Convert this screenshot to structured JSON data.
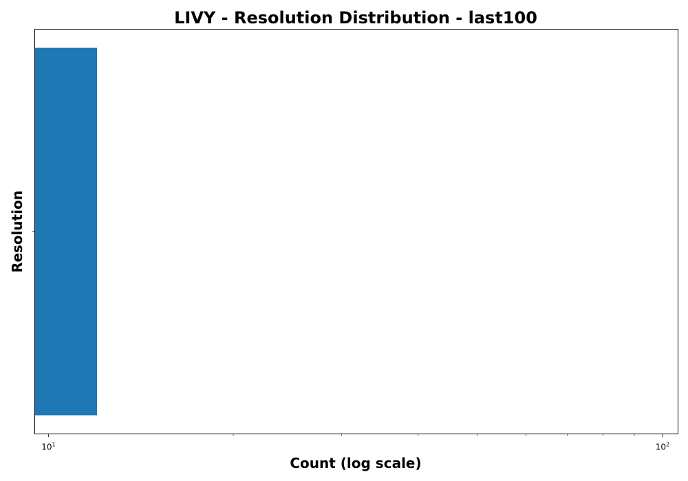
{
  "chart_data": {
    "type": "bar",
    "orientation": "horizontal",
    "title": "LIVY - Resolution Distribution - last100",
    "xlabel": "Count (log scale)",
    "ylabel": "Resolution",
    "x_scale": "log",
    "xlim": [
      9.5,
      106
    ],
    "categories": [
      ""
    ],
    "values": [
      12
    ],
    "x_major_ticks": [
      {
        "value": 10,
        "mantissa": "10",
        "exponent": "1"
      },
      {
        "value": 100,
        "mantissa": "10",
        "exponent": "2"
      }
    ],
    "x_minor_ticks": [
      20,
      30,
      40,
      50,
      60,
      70,
      80,
      90
    ],
    "grid": false,
    "legend": "none",
    "bar_color": "#1f77b4"
  }
}
